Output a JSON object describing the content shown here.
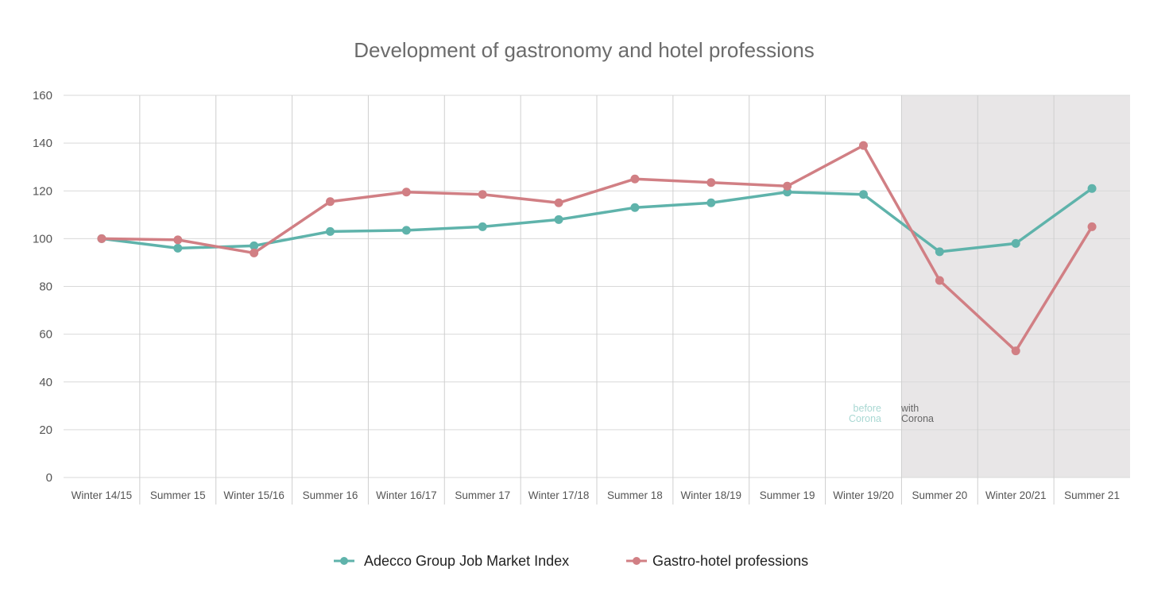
{
  "chart_data": {
    "type": "line",
    "title": "Development of gastronomy and hotel professions",
    "categories": [
      "Winter 14/15",
      "Summer 15",
      "Winter 15/16",
      "Summer 16",
      "Winter 16/17",
      "Summer 17",
      "Winter 17/18",
      "Summer 18",
      "Winter 18/19",
      "Summer 19",
      "Winter 19/20",
      "Summer 20",
      "Winter 20/21",
      "Summer 21"
    ],
    "ylim": [
      0,
      160
    ],
    "yticks": [
      0,
      20,
      40,
      60,
      80,
      100,
      120,
      140,
      160
    ],
    "grid": true,
    "legend_position": "bottom-center",
    "series": [
      {
        "name": "Adecco Group Job Market Index",
        "color": "#5fb3ab",
        "values": [
          100,
          96,
          97,
          103,
          103.5,
          105,
          108,
          113,
          115,
          119.5,
          118.5,
          94.5,
          98,
          121
        ]
      },
      {
        "name": "Gastro-hotel professions",
        "color": "#d17f84",
        "values": [
          100,
          99.5,
          94,
          115.5,
          119.5,
          118.5,
          115,
          125,
          123.5,
          122,
          139,
          82.5,
          53,
          105
        ]
      }
    ],
    "shaded_region": {
      "from_category": "Summer 20",
      "to_category": "Summer 21",
      "color": "#e8e6e7"
    },
    "annotations": {
      "before_line1": "before",
      "before_line2": "Corona",
      "before_color": "#a9d8d3",
      "with_line1": "with",
      "with_line2": "Corona",
      "with_color": "#666666"
    }
  }
}
